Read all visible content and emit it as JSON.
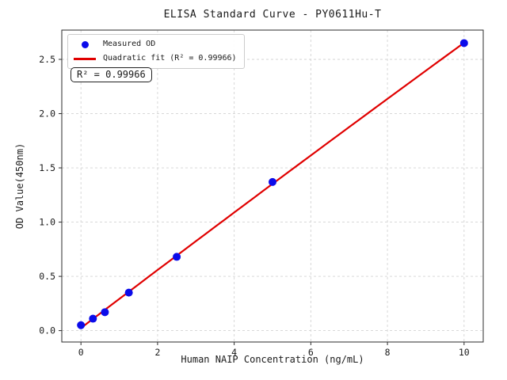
{
  "figure_title": "ELISA Standard Curve - PY0611Hu-T",
  "colors": {
    "points": "#0b0bea",
    "fit_line": "#e00000",
    "grid": "#d3d3d3",
    "spine": "#2b2b2b",
    "text": "#1a1a1a",
    "background": "#ffffff"
  },
  "chart_data": {
    "type": "scatter",
    "title": "ELISA Standard Curve - PY0611Hu-T",
    "xlabel": "Human NAIP Concentration (ng/mL)",
    "ylabel": "OD Value(450nm)",
    "xlim": [
      -0.5,
      10.5
    ],
    "ylim": [
      -0.105,
      2.77
    ],
    "x_ticks": [
      0,
      2,
      4,
      6,
      8,
      10
    ],
    "x_tick_labels": [
      "0",
      "2",
      "4",
      "6",
      "8",
      "10"
    ],
    "y_ticks": [
      0,
      0.5,
      1.0,
      1.5,
      2.0,
      2.5
    ],
    "y_tick_labels": [
      "0.0",
      "0.5",
      "1.0",
      "1.5",
      "2.0",
      "2.5"
    ],
    "grid": true,
    "grid_style": "dashed",
    "legend": {
      "position": "upper left",
      "entries": [
        {
          "label": "Measured OD",
          "marker": "dot",
          "color": "#0b0bea"
        },
        {
          "label": "Quadratic fit (R² = 0.99966)",
          "marker": "line",
          "color": "#e00000"
        }
      ]
    },
    "annotation": {
      "text": "R² = 0.99966"
    },
    "series": [
      {
        "name": "Measured OD",
        "type": "scatter",
        "color": "#0b0bea",
        "x": [
          0,
          0.313,
          0.625,
          1.25,
          2.5,
          5,
          10
        ],
        "y": [
          0.05,
          0.11,
          0.17,
          0.35,
          0.68,
          1.37,
          2.65
        ]
      },
      {
        "name": "Quadratic fit (R² = 0.99966)",
        "type": "line",
        "fit": "quadratic",
        "color": "#e00000",
        "coefficients": {
          "intercept": 0.024,
          "x": 0.2684,
          "x2": -0.00055
        },
        "x_range": [
          0,
          10
        ],
        "r_squared": 0.99966
      }
    ]
  }
}
